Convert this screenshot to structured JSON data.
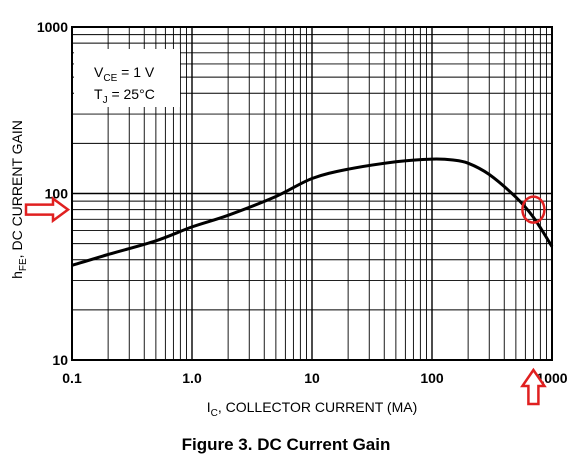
{
  "chart_data": {
    "type": "line",
    "x_scale": "log",
    "y_scale": "log",
    "xlim": [
      0.1,
      1000
    ],
    "ylim": [
      10,
      1000
    ],
    "grid": true,
    "x_ticks": [
      "0.1",
      "1.0",
      "10",
      "100",
      "1000"
    ],
    "y_ticks": [
      "10",
      "100",
      "1000"
    ],
    "xlabel_main": "I",
    "xlabel_sub": "C",
    "xlabel_rest": ", COLLECTOR CURRENT (MA)",
    "ylabel_main": "h",
    "ylabel_sub": "FE",
    "ylabel_rest": ", DC CURRENT GAIN",
    "conditions": [
      {
        "main": "V",
        "sub": "CE",
        "rest": " = 1 V"
      },
      {
        "main": "T",
        "sub": "J",
        "rest": " = 25°C"
      }
    ],
    "series": [
      {
        "x": [
          0.1,
          0.2,
          0.5,
          1,
          2,
          5,
          10,
          20,
          50,
          100,
          150,
          200,
          300,
          500,
          700,
          1000
        ],
        "values": [
          37,
          43,
          52,
          63,
          74,
          96,
          123,
          140,
          155,
          161,
          159,
          152,
          130,
          95,
          72,
          48
        ],
        "color": "#000000"
      }
    ],
    "annotations": [
      {
        "shape": "arrow-right",
        "target": "y",
        "value": 80,
        "color": "#e02020"
      },
      {
        "shape": "arrow-up",
        "target": "x",
        "value": 700,
        "color": "#e02020"
      },
      {
        "shape": "circle",
        "x": 700,
        "y": 80,
        "color": "#e02020"
      }
    ]
  },
  "figure_caption": "Figure 3. DC Current Gain"
}
